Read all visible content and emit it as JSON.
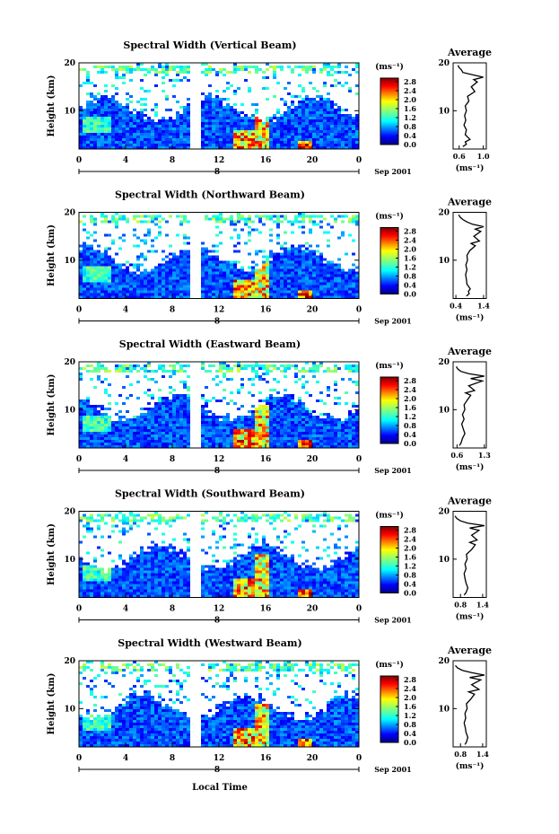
{
  "chart_data": {
    "type": "heatmap",
    "figure": {
      "x_axis_label": "Local Time",
      "date_label": "Sep 2001",
      "time_ticks": [
        "0",
        "4",
        "8",
        "12",
        "16",
        "20",
        "0"
      ],
      "day_marker": "8",
      "height_ticks": [
        "20",
        "10"
      ],
      "height_label": "Height (km)",
      "unit_label": "(ms⁻¹)",
      "colorbar_ticks": [
        "2.8",
        "2.4",
        "2.0",
        "1.6",
        "1.2",
        "0.8",
        "0.4",
        "0.0"
      ],
      "colorbar_range": [
        0.0,
        2.8
      ],
      "average_title": "Average",
      "average_xlabel": "(ms⁻¹)",
      "average_yticks": [
        "20",
        "10"
      ],
      "height_range_km": [
        2,
        20
      ],
      "time_range_hours": [
        0,
        24
      ]
    },
    "panels": [
      {
        "title": "Spectral Width (Vertical Beam)",
        "average_xticks": [
          "0.6",
          "1.0"
        ],
        "average_xlim": [
          0.5,
          1.05
        ],
        "average_profile": [
          [
            2.5,
            0.66
          ],
          [
            3,
            0.72
          ],
          [
            3.5,
            0.7
          ],
          [
            4,
            0.78
          ],
          [
            4.5,
            0.74
          ],
          [
            5,
            0.7
          ],
          [
            6,
            0.72
          ],
          [
            7,
            0.68
          ],
          [
            8,
            0.71
          ],
          [
            9,
            0.69
          ],
          [
            10,
            0.72
          ],
          [
            11,
            0.7
          ],
          [
            12,
            0.76
          ],
          [
            13,
            0.74
          ],
          [
            14,
            0.86
          ],
          [
            15,
            0.8
          ],
          [
            16,
            0.9
          ],
          [
            16.5,
            0.84
          ],
          [
            17,
            1.0
          ],
          [
            17.5,
            0.82
          ],
          [
            18,
            0.66
          ],
          [
            18.5,
            0.64
          ],
          [
            19,
            0.6
          ],
          [
            19.5,
            0.58
          ]
        ]
      },
      {
        "title": "Spectral Width (Northward Beam)",
        "average_xticks": [
          "0.4",
          "1.4"
        ],
        "average_xlim": [
          0.3,
          1.5
        ],
        "average_profile": [
          [
            2.5,
            0.78
          ],
          [
            3,
            0.88
          ],
          [
            3.5,
            0.85
          ],
          [
            4,
            0.92
          ],
          [
            5,
            0.8
          ],
          [
            6,
            0.78
          ],
          [
            7,
            0.75
          ],
          [
            8,
            0.8
          ],
          [
            9,
            0.76
          ],
          [
            10,
            0.82
          ],
          [
            11,
            0.8
          ],
          [
            12,
            0.9
          ],
          [
            13,
            1.1
          ],
          [
            13.5,
            0.95
          ],
          [
            14,
            1.25
          ],
          [
            15,
            1.05
          ],
          [
            16,
            1.3
          ],
          [
            16.5,
            1.1
          ],
          [
            17,
            1.4
          ],
          [
            17.5,
            1.0
          ],
          [
            18,
            0.8
          ],
          [
            18.5,
            0.65
          ],
          [
            19,
            0.55
          ],
          [
            19.5,
            0.5
          ]
        ]
      },
      {
        "title": "Spectral Width (Eastward Beam)",
        "average_xticks": [
          "0.6",
          "1.3"
        ],
        "average_xlim": [
          0.5,
          1.35
        ],
        "average_profile": [
          [
            2.5,
            0.66
          ],
          [
            3,
            0.7
          ],
          [
            4,
            0.74
          ],
          [
            5,
            0.8
          ],
          [
            6,
            0.76
          ],
          [
            7,
            0.72
          ],
          [
            8,
            0.78
          ],
          [
            9,
            0.74
          ],
          [
            10,
            0.8
          ],
          [
            11,
            0.78
          ],
          [
            12,
            0.86
          ],
          [
            13,
            0.95
          ],
          [
            13.5,
            0.82
          ],
          [
            14,
            1.05
          ],
          [
            15,
            0.9
          ],
          [
            16,
            1.25
          ],
          [
            16.5,
            0.95
          ],
          [
            17,
            1.3
          ],
          [
            17.5,
            0.9
          ],
          [
            18,
            0.7
          ],
          [
            18.5,
            0.62
          ],
          [
            19,
            0.58
          ]
        ]
      },
      {
        "title": "Spectral Width (Southward Beam)",
        "average_xticks": [
          "0.8",
          "1.4"
        ],
        "average_xlim": [
          0.6,
          1.5
        ],
        "average_profile": [
          [
            2.5,
            0.9
          ],
          [
            3,
            0.95
          ],
          [
            4,
            1.0
          ],
          [
            5,
            0.95
          ],
          [
            6,
            0.92
          ],
          [
            7,
            0.9
          ],
          [
            8,
            0.95
          ],
          [
            9,
            0.92
          ],
          [
            10,
            0.98
          ],
          [
            11,
            0.96
          ],
          [
            12,
            1.1
          ],
          [
            13,
            1.2
          ],
          [
            13.5,
            1.05
          ],
          [
            14,
            1.25
          ],
          [
            15,
            1.1
          ],
          [
            16,
            1.3
          ],
          [
            16.5,
            1.05
          ],
          [
            17,
            1.45
          ],
          [
            17.5,
            1.0
          ],
          [
            18,
            0.8
          ],
          [
            18.5,
            0.7
          ],
          [
            19,
            0.65
          ]
        ]
      },
      {
        "title": "Spectral Width (Westward Beam)",
        "average_xticks": [
          "0.8",
          "1.4"
        ],
        "average_xlim": [
          0.6,
          1.5
        ],
        "average_profile": [
          [
            2.5,
            0.92
          ],
          [
            3,
            0.96
          ],
          [
            4,
            1.0
          ],
          [
            5,
            0.95
          ],
          [
            6,
            0.93
          ],
          [
            7,
            0.9
          ],
          [
            8,
            0.94
          ],
          [
            9,
            0.92
          ],
          [
            10,
            0.98
          ],
          [
            11,
            0.96
          ],
          [
            12,
            1.08
          ],
          [
            13,
            1.18
          ],
          [
            13.5,
            1.02
          ],
          [
            14,
            1.3
          ],
          [
            15,
            1.1
          ],
          [
            16,
            1.35
          ],
          [
            16.5,
            1.05
          ],
          [
            17,
            1.45
          ],
          [
            17.5,
            1.1
          ],
          [
            18,
            0.85
          ],
          [
            18.5,
            0.72
          ],
          [
            19,
            0.66
          ]
        ]
      }
    ]
  }
}
